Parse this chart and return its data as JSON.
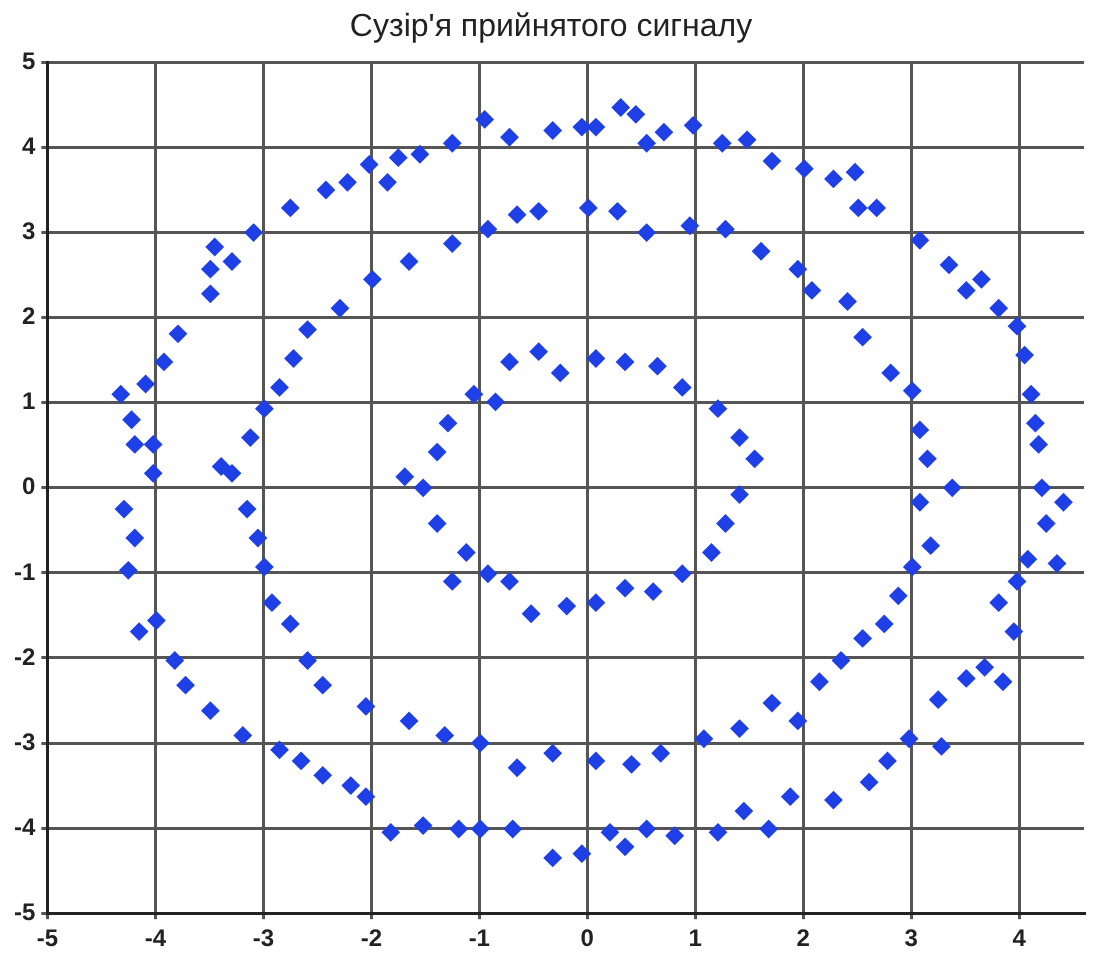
{
  "chart_data": {
    "type": "scatter",
    "title": "Сузір'я прийнятого сигналу",
    "xlim": [
      -5,
      4.6
    ],
    "ylim": [
      -5,
      5
    ],
    "xticks": [
      -5,
      -4,
      -3,
      -2,
      -1,
      0,
      1,
      2,
      3,
      4
    ],
    "yticks": [
      -5,
      -4,
      -3,
      -2,
      -1,
      0,
      1,
      2,
      3,
      4,
      5
    ],
    "grid": true,
    "marker": "diamond",
    "series": [
      {
        "color": "#1e40e6",
        "x": [
          -0.95,
          -0.72,
          -0.32,
          -0.05,
          0.08,
          0.31,
          0.45,
          0.55,
          0.71,
          0.98,
          1.25,
          1.48,
          1.71,
          2.01,
          2.28,
          2.48,
          2.51,
          2.68,
          3.08,
          3.35,
          3.65,
          3.51,
          3.81,
          3.98,
          4.05,
          4.11,
          4.15,
          4.18,
          4.21,
          4.41,
          4.25,
          4.35,
          4.08,
          3.98,
          3.81,
          3.95,
          3.68,
          3.85,
          3.51,
          3.25,
          3.28,
          2.98,
          2.78,
          2.61,
          2.28,
          1.88,
          1.68,
          1.45,
          1.21,
          0.81,
          0.55,
          0.35,
          0.21,
          -0.05,
          -0.32,
          -0.69,
          -0.99,
          -1.19,
          -1.52,
          -1.82,
          -2.05,
          -2.19,
          -2.45,
          -2.65,
          -2.85,
          -3.19,
          -3.49,
          -3.72,
          -3.82,
          -3.99,
          -4.15,
          -4.25,
          -4.19,
          -4.29,
          -4.02,
          -4.19,
          -4.02,
          -4.22,
          -4.32,
          -4.09,
          -3.92,
          -3.79,
          -3.49,
          -3.49,
          -3.29,
          -3.45,
          -3.09,
          -2.75,
          -2.42,
          -2.22,
          -2.02,
          -1.85,
          -1.75,
          -1.55,
          -1.25,
          -0.45,
          0.01,
          0.28,
          0.55,
          0.95,
          1.28,
          1.61,
          1.95,
          2.08,
          2.41,
          2.55,
          2.81,
          3.01,
          3.08,
          3.15,
          3.38,
          3.08,
          3.18,
          3.01,
          2.88,
          2.75,
          2.55,
          2.35,
          2.15,
          1.95,
          1.71,
          1.41,
          1.08,
          0.68,
          0.41,
          0.08,
          -0.32,
          -0.65,
          -0.99,
          -1.32,
          -1.65,
          -2.05,
          -2.45,
          -2.59,
          -2.75,
          -2.92,
          -2.99,
          -3.05,
          -3.15,
          -3.29,
          -3.39,
          -3.12,
          -2.99,
          -2.85,
          -2.72,
          -2.59,
          -2.29,
          -1.99,
          -1.65,
          -1.25,
          -0.92,
          -0.65,
          -0.45,
          -0.72,
          -0.25,
          0.08,
          0.35,
          0.65,
          0.88,
          1.21,
          1.41,
          1.55,
          1.41,
          1.28,
          1.15,
          0.88,
          0.61,
          0.35,
          0.08,
          -0.19,
          -0.52,
          -0.72,
          -0.92,
          -1.25,
          -1.12,
          -1.39,
          -1.52,
          -1.69,
          -1.39,
          -1.29,
          -1.05,
          -0.85
        ],
        "values": [
          4.33,
          4.12,
          4.2,
          4.24,
          4.24,
          4.47,
          4.39,
          4.05,
          4.18,
          4.26,
          4.05,
          4.09,
          3.84,
          3.75,
          3.63,
          3.71,
          3.29,
          3.29,
          2.91,
          2.62,
          2.45,
          2.32,
          2.11,
          1.9,
          1.56,
          1.1,
          0.76,
          0.51,
          0,
          -0.17,
          -0.42,
          -0.89,
          -0.84,
          -1.1,
          -1.35,
          -1.69,
          -2.11,
          -2.28,
          -2.24,
          -2.49,
          -3.04,
          -2.95,
          -3.21,
          -3.46,
          -3.67,
          -3.63,
          -4.01,
          -3.8,
          -4.05,
          -4.09,
          -4.01,
          -4.22,
          -4.05,
          -4.3,
          -4.35,
          -4.01,
          -4.01,
          -4.01,
          -3.97,
          -4.05,
          -3.63,
          -3.5,
          -3.38,
          -3.21,
          -3.08,
          -2.91,
          -2.62,
          -2.32,
          -2.03,
          -1.56,
          -1.69,
          -0.97,
          -0.59,
          -0.25,
          0.17,
          0.51,
          0.51,
          0.8,
          1.1,
          1.22,
          1.48,
          1.81,
          2.28,
          2.57,
          2.66,
          2.83,
          3.0,
          3.29,
          3.5,
          3.59,
          3.8,
          3.59,
          3.88,
          3.92,
          4.05,
          3.25,
          3.29,
          3.25,
          3.0,
          3.08,
          3.04,
          2.78,
          2.57,
          2.32,
          2.19,
          1.77,
          1.35,
          1.14,
          0.68,
          0.34,
          0,
          -0.17,
          -0.68,
          -0.93,
          -1.27,
          -1.6,
          -1.77,
          -2.03,
          -2.28,
          -2.74,
          -2.53,
          -2.83,
          -2.95,
          -3.12,
          -3.25,
          -3.21,
          -3.12,
          -3.29,
          -3.0,
          -2.91,
          -2.74,
          -2.57,
          -2.32,
          -2.03,
          -1.6,
          -1.35,
          -0.93,
          -0.59,
          -0.25,
          0.17,
          0.25,
          0.59,
          0.93,
          1.18,
          1.52,
          1.86,
          2.11,
          2.45,
          2.66,
          2.87,
          3.04,
          3.21,
          1.6,
          1.48,
          1.35,
          1.52,
          1.48,
          1.43,
          1.18,
          0.93,
          0.59,
          0.34,
          -0.08,
          -0.42,
          -0.76,
          -1.01,
          -1.22,
          -1.18,
          -1.35,
          -1.39,
          -1.48,
          -1.1,
          -1.01,
          -1.1,
          -0.76,
          -0.42,
          0,
          0.13,
          0.42,
          0.76,
          1.1,
          1.01
        ]
      }
    ]
  }
}
